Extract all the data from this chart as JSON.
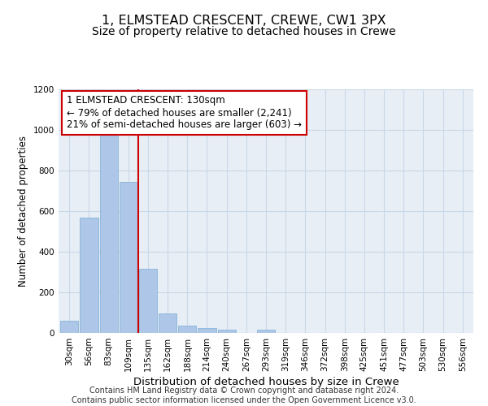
{
  "title_line1": "1, ELMSTEAD CRESCENT, CREWE, CW1 3PX",
  "title_line2": "Size of property relative to detached houses in Crewe",
  "xlabel": "Distribution of detached houses by size in Crewe",
  "ylabel": "Number of detached properties",
  "categories": [
    "30sqm",
    "56sqm",
    "83sqm",
    "109sqm",
    "135sqm",
    "162sqm",
    "188sqm",
    "214sqm",
    "240sqm",
    "267sqm",
    "293sqm",
    "319sqm",
    "346sqm",
    "372sqm",
    "398sqm",
    "425sqm",
    "451sqm",
    "477sqm",
    "503sqm",
    "530sqm",
    "556sqm"
  ],
  "values": [
    62,
    570,
    1005,
    745,
    315,
    97,
    38,
    25,
    15,
    0,
    15,
    0,
    0,
    0,
    0,
    0,
    0,
    0,
    0,
    0,
    0
  ],
  "bar_color": "#aec6e8",
  "bar_edge_color": "#7aafd4",
  "vline_color": "#cc0000",
  "vline_x_idx": 3.5,
  "annotation_text_line1": "1 ELMSTEAD CRESCENT: 130sqm",
  "annotation_text_line2": "← 79% of detached houses are smaller (2,241)",
  "annotation_text_line3": "21% of semi-detached houses are larger (603) →",
  "annotation_box_color": "#cc0000",
  "ylim": [
    0,
    1200
  ],
  "yticks": [
    0,
    200,
    400,
    600,
    800,
    1000,
    1200
  ],
  "grid_color": "#c8d8e8",
  "background_color": "#e8eef5",
  "footer_text": "Contains HM Land Registry data © Crown copyright and database right 2024.\nContains public sector information licensed under the Open Government Licence v3.0.",
  "title_fontsize": 11.5,
  "subtitle_fontsize": 10,
  "xlabel_fontsize": 9.5,
  "ylabel_fontsize": 8.5,
  "tick_fontsize": 7.5,
  "annotation_fontsize": 8.5,
  "footer_fontsize": 7
}
